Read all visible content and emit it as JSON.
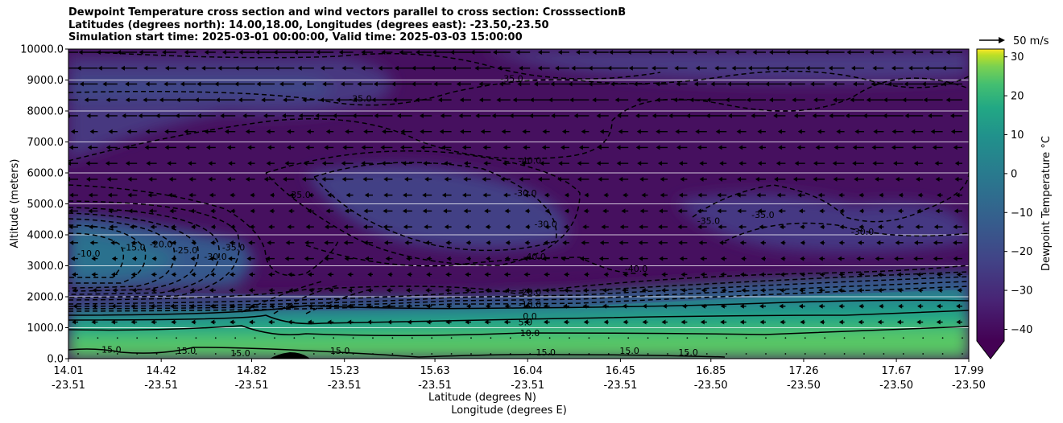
{
  "title_lines": [
    "Dewpoint Temperature cross section and wind vectors parallel to cross section: CrosssectionB",
    "Latitudes (degrees north): 14.00,18.00, Longitudes (degrees east): -23.50,-23.50",
    "Simulation start time: 2025-03-01 00:00:00, Valid time: 2025-03-03 15:00:00"
  ],
  "chart_data": {
    "type": "heatmap",
    "ylabel": "Altitude (meters)",
    "xlabel_line1": "Latitude (degrees N)",
    "xlabel_line2": "Longitude (degrees E)",
    "ylim": [
      0,
      10000
    ],
    "y_ticks": [
      "0.0",
      "1000.0",
      "2000.0",
      "3000.0",
      "4000.0",
      "5000.0",
      "6000.0",
      "7000.0",
      "8000.0",
      "9000.0",
      "10000.0"
    ],
    "x_ticks": [
      {
        "lat": "14.01",
        "lon": "-23.51"
      },
      {
        "lat": "14.42",
        "lon": "-23.51"
      },
      {
        "lat": "14.82",
        "lon": "-23.51"
      },
      {
        "lat": "15.23",
        "lon": "-23.51"
      },
      {
        "lat": "15.63",
        "lon": "-23.51"
      },
      {
        "lat": "16.04",
        "lon": "-23.51"
      },
      {
        "lat": "16.45",
        "lon": "-23.51"
      },
      {
        "lat": "16.85",
        "lon": "-23.50"
      },
      {
        "lat": "17.26",
        "lon": "-23.50"
      },
      {
        "lat": "17.67",
        "lon": "-23.50"
      },
      {
        "lat": "17.99",
        "lon": "-23.50"
      }
    ],
    "grid": "horizontal",
    "colorbar": {
      "label": "Dewpoint Temperature $^\\circ$C",
      "ticks": [
        "30",
        "20",
        "10",
        "0",
        "−10",
        "−20",
        "−30",
        "−40"
      ],
      "range": [
        -43,
        32
      ],
      "colormap": "viridis",
      "extend": "min"
    },
    "quiver_key": "50 m/s",
    "contour_labels": [
      {
        "text": "-35.0",
        "lat": 15.3,
        "alt": 8300
      },
      {
        "text": "-35.0",
        "lat": 15.97,
        "alt": 8950
      },
      {
        "text": "-40.0",
        "lat": 16.05,
        "alt": 6300
      },
      {
        "text": "-30.0",
        "lat": 16.03,
        "alt": 5250
      },
      {
        "text": "-35.0",
        "lat": 15.03,
        "alt": 5200
      },
      {
        "text": "-30.0",
        "lat": 16.12,
        "alt": 4250
      },
      {
        "text": "-35.0",
        "lat": 16.84,
        "alt": 4350
      },
      {
        "text": "-35.0",
        "lat": 17.08,
        "alt": 4550
      },
      {
        "text": "-30.0",
        "lat": 17.52,
        "alt": 4000
      },
      {
        "text": "-40.0",
        "lat": 16.07,
        "alt": 3200
      },
      {
        "text": "-15.0",
        "lat": 14.3,
        "alt": 3500
      },
      {
        "text": "-10.0",
        "lat": 14.1,
        "alt": 3300
      },
      {
        "text": "-20.0",
        "lat": 14.42,
        "alt": 3600
      },
      {
        "text": "-25.0",
        "lat": 14.53,
        "alt": 3400
      },
      {
        "text": "-30.0",
        "lat": 14.66,
        "alt": 3200
      },
      {
        "text": "-35.0",
        "lat": 14.74,
        "alt": 3500
      },
      {
        "text": "-40.0",
        "lat": 16.52,
        "alt": 2800
      },
      {
        "text": "-20.0",
        "lat": 16.05,
        "alt": 2050
      },
      {
        "text": "-10.0",
        "lat": 16.05,
        "alt": 1650
      },
      {
        "text": "0.0",
        "lat": 16.05,
        "alt": 1270
      },
      {
        "text": "5.0",
        "lat": 16.03,
        "alt": 1080
      },
      {
        "text": "10.0",
        "lat": 16.05,
        "alt": 730
      },
      {
        "text": "15.0",
        "lat": 14.2,
        "alt": 200
      },
      {
        "text": "15.0",
        "lat": 14.53,
        "alt": 150
      },
      {
        "text": "15.0",
        "lat": 14.77,
        "alt": 80
      },
      {
        "text": "15.0",
        "lat": 15.21,
        "alt": 160
      },
      {
        "text": "15.0",
        "lat": 16.12,
        "alt": 100
      },
      {
        "text": "15.0",
        "lat": 16.49,
        "alt": 160
      },
      {
        "text": "15.0",
        "lat": 16.75,
        "alt": 100
      }
    ]
  }
}
